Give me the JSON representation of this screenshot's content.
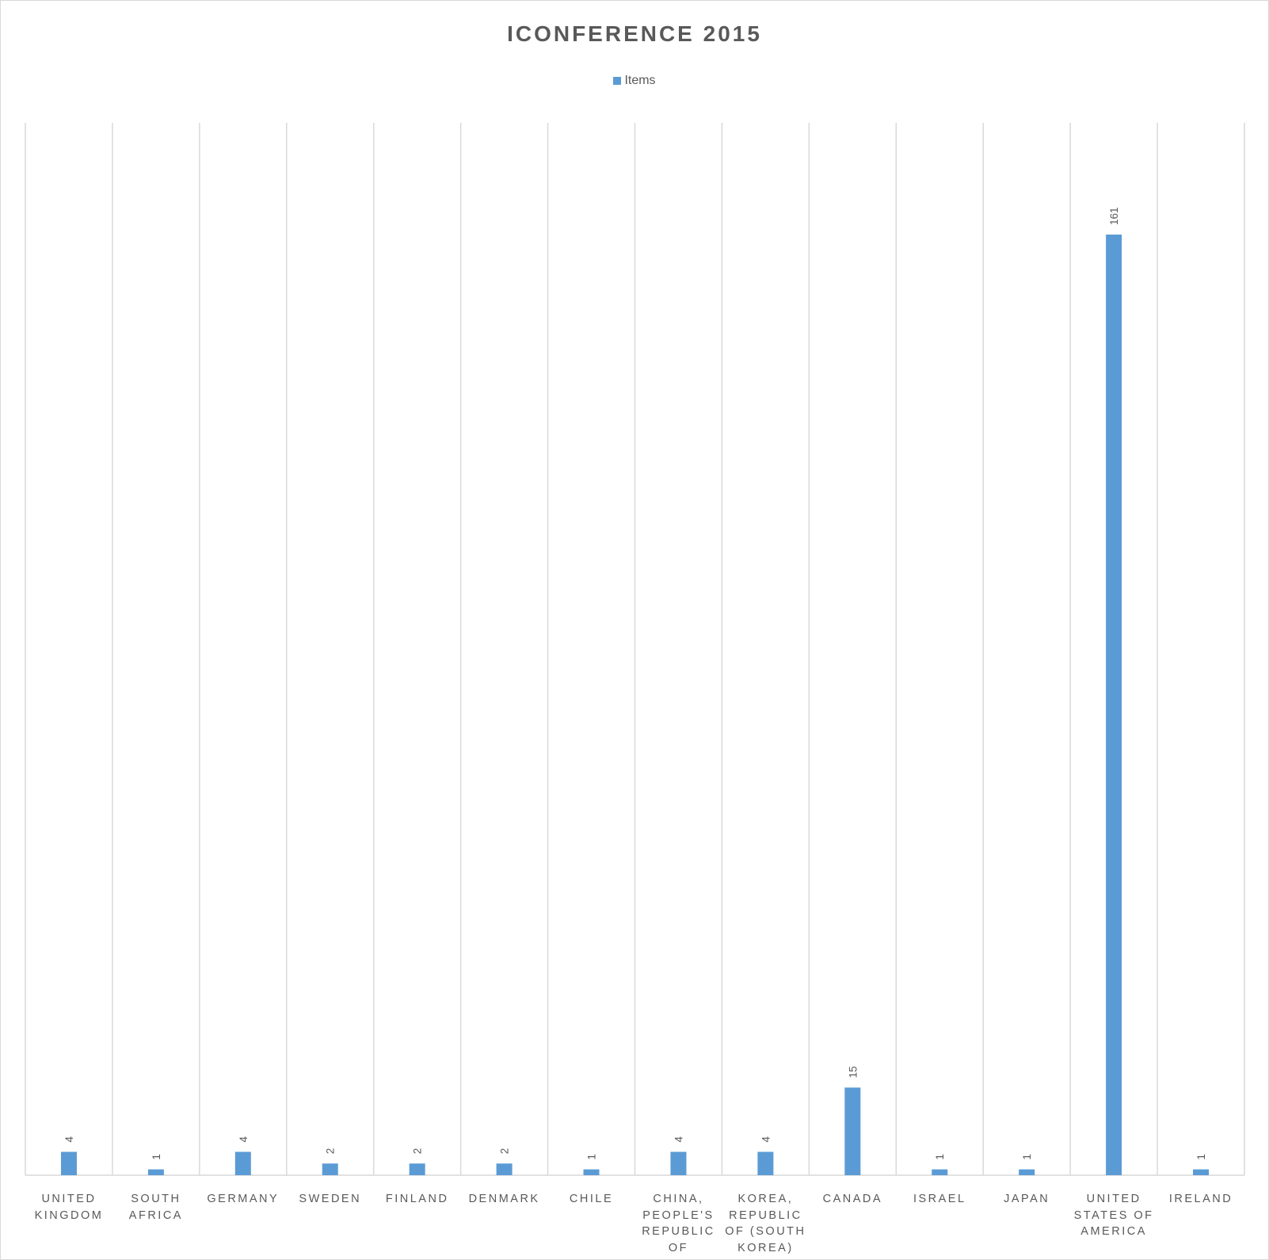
{
  "chart_data": {
    "type": "bar",
    "title": "ICONFERENCE 2015",
    "categories": [
      "UNITED KINGDOM",
      "SOUTH AFRICA",
      "GERMANY",
      "SWEDEN",
      "FINLAND",
      "DENMARK",
      "CHILE",
      "CHINA, PEOPLE'S REPUBLIC OF",
      "KOREA, REPUBLIC OF (SOUTH KOREA)",
      "CANADA",
      "ISRAEL",
      "JAPAN",
      "UNITED STATES OF AMERICA",
      "IRELAND"
    ],
    "series": [
      {
        "name": "Items",
        "values": [
          4,
          1,
          4,
          2,
          2,
          2,
          1,
          4,
          4,
          15,
          1,
          1,
          161,
          1
        ]
      }
    ],
    "xlabel": "",
    "ylabel": "",
    "ylim": [
      0,
      180
    ],
    "grid": "vertical",
    "legend": "top-center",
    "data_labels": true,
    "bar_color": "#5B9BD5"
  }
}
